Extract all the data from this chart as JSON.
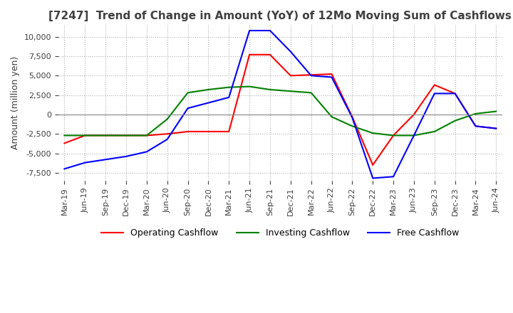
{
  "title": "[7247]  Trend of Change in Amount (YoY) of 12Mo Moving Sum of Cashflows",
  "ylabel": "Amount (million yen)",
  "ylim": [
    -8500,
    11500
  ],
  "yticks": [
    -7500,
    -5000,
    -2500,
    0,
    2500,
    5000,
    7500,
    10000
  ],
  "x_labels": [
    "Mar-19",
    "Jun-19",
    "Sep-19",
    "Dec-19",
    "Mar-20",
    "Jun-20",
    "Sep-20",
    "Dec-20",
    "Mar-21",
    "Jun-21",
    "Sep-21",
    "Dec-21",
    "Mar-22",
    "Jun-22",
    "Sep-22",
    "Dec-22",
    "Mar-23",
    "Jun-23",
    "Sep-23",
    "Dec-23",
    "Mar-24",
    "Jun-24"
  ],
  "operating": [
    -3700,
    -2700,
    -2700,
    -2700,
    -2700,
    -2500,
    -2200,
    -2200,
    -2200,
    7700,
    7700,
    5000,
    5100,
    5200,
    -300,
    -6500,
    -2700,
    0,
    3800,
    2700,
    -1500,
    -1800
  ],
  "investing": [
    -2700,
    -2700,
    -2700,
    -2700,
    -2700,
    -600,
    2800,
    3200,
    3500,
    3600,
    3200,
    3000,
    2800,
    -300,
    -1500,
    -2400,
    -2700,
    -2700,
    -2200,
    -800,
    100,
    400
  ],
  "free": [
    -7000,
    -6200,
    -5800,
    -5400,
    -4800,
    -3200,
    800,
    1500,
    2200,
    10800,
    10800,
    8100,
    5000,
    4800,
    -400,
    -8200,
    -8000,
    -2700,
    2700,
    2700,
    -1500,
    -1800
  ],
  "operating_color": "#ff0000",
  "investing_color": "#008000",
  "free_color": "#0000ff",
  "grid_color": "#b0b0b0",
  "title_color": "#404040"
}
